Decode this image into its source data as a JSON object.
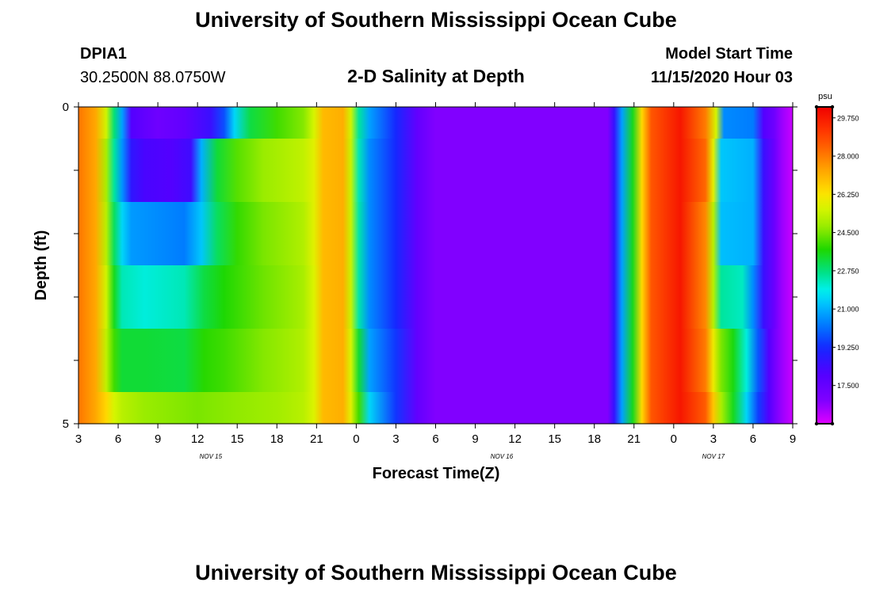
{
  "page": {
    "title_top": "University of Southern Mississippi Ocean Cube",
    "title_bottom": "University of Southern Mississippi Ocean Cube",
    "station_id": "DPIA1",
    "station_coords": "30.2500N 88.0750W",
    "model_start_label": "Model Start Time",
    "model_start_value": "11/15/2020 Hour 03"
  },
  "chart_data": {
    "type": "heatmap",
    "title": "2-D Salinity at Depth",
    "xlabel": "Forecast Time(Z)",
    "ylabel": "Depth (ft)",
    "ylim": [
      0,
      5
    ],
    "x_hours_range": [
      0,
      54
    ],
    "x_tick_labels": [
      "3",
      "6",
      "9",
      "12",
      "15",
      "18",
      "21",
      "0",
      "3",
      "6",
      "9",
      "12",
      "15",
      "18",
      "21",
      "0",
      "3",
      "6",
      "9"
    ],
    "date_labels": [
      {
        "text": "NOV 15",
        "hour": 10
      },
      {
        "text": "NOV 16",
        "hour": 32
      },
      {
        "text": "NOV 17",
        "hour": 48
      }
    ],
    "y_tick_labels": [
      "0",
      "5"
    ],
    "colorbar": {
      "unit": "psu",
      "min": 15.75,
      "max": 30.25,
      "labels": [
        "29.750",
        "28.000",
        "26.250",
        "24.500",
        "22.750",
        "21.000",
        "19.250",
        "17.500"
      ],
      "label_values": [
        29.75,
        28.0,
        26.25,
        24.5,
        22.75,
        21.0,
        19.25,
        17.5
      ]
    },
    "layers": [
      {
        "depth": [
          0.0,
          0.5
        ],
        "points": [
          [
            0,
            28.1
          ],
          [
            1.3,
            27.3
          ],
          [
            2.1,
            25.5
          ],
          [
            2.7,
            22.8
          ],
          [
            3.3,
            20.8
          ],
          [
            4.0,
            18.0
          ],
          [
            5,
            17.6
          ],
          [
            6,
            17.3
          ],
          [
            8,
            17.6
          ],
          [
            10,
            18.5
          ],
          [
            11,
            19.7
          ],
          [
            11.8,
            21.5
          ],
          [
            13,
            23.2
          ],
          [
            15,
            24.0
          ],
          [
            17,
            24.6
          ],
          [
            17.8,
            25.6
          ],
          [
            18.5,
            27.0
          ],
          [
            20,
            27.2
          ],
          [
            20.6,
            25.5
          ],
          [
            21.2,
            22.5
          ],
          [
            22,
            20.8
          ],
          [
            24,
            19.2
          ],
          [
            25.6,
            17.6
          ],
          [
            27,
            16.8
          ],
          [
            40,
            16.8
          ],
          [
            40.5,
            18.6
          ],
          [
            41.1,
            20.8
          ],
          [
            41.9,
            23.5
          ],
          [
            42.6,
            26.5
          ],
          [
            43.3,
            28.6
          ],
          [
            45.5,
            29.8
          ],
          [
            47.4,
            28.0
          ],
          [
            48.2,
            25.6
          ],
          [
            48.8,
            20.5
          ],
          [
            51,
            20.3
          ],
          [
            51.8,
            18.0
          ],
          [
            52.6,
            17.3
          ],
          [
            53.2,
            16.5
          ],
          [
            54,
            16.0
          ]
        ]
      },
      {
        "depth": [
          0.5,
          1.5
        ],
        "points": [
          [
            0,
            28.1
          ],
          [
            1.3,
            27.3
          ],
          [
            2.1,
            25.0
          ],
          [
            2.7,
            22.5
          ],
          [
            3.3,
            20.6
          ],
          [
            4.0,
            18.7
          ],
          [
            5,
            18.2
          ],
          [
            7,
            18.0
          ],
          [
            8.5,
            18.4
          ],
          [
            9.3,
            21.0
          ],
          [
            10.5,
            23.3
          ],
          [
            12,
            24.2
          ],
          [
            14,
            24.8
          ],
          [
            17,
            25.3
          ],
          [
            17.8,
            25.8
          ],
          [
            18.5,
            27.0
          ],
          [
            20,
            27.2
          ],
          [
            20.6,
            25.4
          ],
          [
            21.2,
            22.3
          ],
          [
            22,
            20.5
          ],
          [
            24,
            19.2
          ],
          [
            25.6,
            17.6
          ],
          [
            27,
            16.8
          ],
          [
            40,
            16.8
          ],
          [
            40.5,
            18.6
          ],
          [
            41.1,
            20.8
          ],
          [
            41.9,
            23.5
          ],
          [
            42.6,
            26.5
          ],
          [
            43.3,
            28.6
          ],
          [
            45.5,
            29.8
          ],
          [
            47.4,
            28.3
          ],
          [
            48.0,
            25.8
          ],
          [
            48.6,
            21.3
          ],
          [
            51,
            21.0
          ],
          [
            51.8,
            18.5
          ],
          [
            52.6,
            17.4
          ],
          [
            53.2,
            16.5
          ],
          [
            54,
            16.0
          ]
        ]
      },
      {
        "depth": [
          1.5,
          2.5
        ],
        "points": [
          [
            0,
            28.1
          ],
          [
            1.3,
            27.3
          ],
          [
            2.1,
            25.2
          ],
          [
            2.7,
            23.0
          ],
          [
            3.3,
            21.5
          ],
          [
            4.0,
            20.7
          ],
          [
            5,
            20.6
          ],
          [
            8,
            20.3
          ],
          [
            9.3,
            21.3
          ],
          [
            10.5,
            23.0
          ],
          [
            12,
            23.9
          ],
          [
            14,
            24.5
          ],
          [
            17,
            25.1
          ],
          [
            17.8,
            25.8
          ],
          [
            18.5,
            27.0
          ],
          [
            20,
            27.2
          ],
          [
            20.6,
            25.4
          ],
          [
            21.2,
            22.4
          ],
          [
            22,
            20.5
          ],
          [
            24,
            19.2
          ],
          [
            25.6,
            17.6
          ],
          [
            27,
            16.8
          ],
          [
            40,
            16.8
          ],
          [
            40.5,
            18.6
          ],
          [
            41.1,
            20.8
          ],
          [
            41.9,
            23.5
          ],
          [
            42.6,
            26.5
          ],
          [
            43.3,
            28.6
          ],
          [
            45.5,
            29.8
          ],
          [
            47.4,
            27.8
          ],
          [
            48.0,
            25.2
          ],
          [
            48.6,
            21.2
          ],
          [
            51,
            21.0
          ],
          [
            51.8,
            18.5
          ],
          [
            52.6,
            17.4
          ],
          [
            53.2,
            16.5
          ],
          [
            54,
            16.0
          ]
        ]
      },
      {
        "depth": [
          2.5,
          3.5
        ],
        "points": [
          [
            0,
            28.1
          ],
          [
            1.3,
            27.3
          ],
          [
            2.1,
            25.5
          ],
          [
            2.7,
            23.5
          ],
          [
            3.3,
            22.3
          ],
          [
            5,
            22.0
          ],
          [
            8,
            22.3
          ],
          [
            9.5,
            23.2
          ],
          [
            11,
            23.7
          ],
          [
            14,
            24.4
          ],
          [
            17,
            25.0
          ],
          [
            17.8,
            25.7
          ],
          [
            18.5,
            27.0
          ],
          [
            20,
            27.2
          ],
          [
            20.6,
            25.4
          ],
          [
            21.2,
            22.4
          ],
          [
            22,
            20.5
          ],
          [
            24,
            19.2
          ],
          [
            25.6,
            17.6
          ],
          [
            27,
            16.8
          ],
          [
            40,
            16.8
          ],
          [
            40.5,
            18.6
          ],
          [
            41.1,
            20.8
          ],
          [
            41.9,
            23.5
          ],
          [
            42.6,
            26.5
          ],
          [
            43.3,
            28.6
          ],
          [
            45.5,
            29.8
          ],
          [
            47.4,
            27.8
          ],
          [
            48.0,
            25.2
          ],
          [
            48.6,
            22.5
          ],
          [
            50.2,
            22.2
          ],
          [
            51.0,
            20.5
          ],
          [
            51.8,
            18.5
          ],
          [
            52.6,
            17.4
          ],
          [
            53.2,
            16.5
          ],
          [
            54,
            16.0
          ]
        ]
      },
      {
        "depth": [
          3.5,
          4.5
        ],
        "points": [
          [
            0,
            28.1
          ],
          [
            1.3,
            27.3
          ],
          [
            2.1,
            25.3
          ],
          [
            2.7,
            24.0
          ],
          [
            3.3,
            23.3
          ],
          [
            5,
            23.3
          ],
          [
            8,
            23.2
          ],
          [
            9.5,
            23.8
          ],
          [
            11,
            24.0
          ],
          [
            14,
            24.6
          ],
          [
            17,
            25.1
          ],
          [
            17.8,
            25.7
          ],
          [
            18.5,
            27.0
          ],
          [
            20,
            27.2
          ],
          [
            20.6,
            25.6
          ],
          [
            21.2,
            23.3
          ],
          [
            22,
            20.8
          ],
          [
            24,
            19.4
          ],
          [
            25.6,
            17.6
          ],
          [
            27,
            16.8
          ],
          [
            40,
            16.8
          ],
          [
            40.5,
            18.6
          ],
          [
            41.1,
            20.8
          ],
          [
            41.9,
            23.5
          ],
          [
            42.6,
            26.5
          ],
          [
            43.3,
            28.6
          ],
          [
            45.5,
            29.8
          ],
          [
            47.4,
            28.0
          ],
          [
            48.0,
            26.0
          ],
          [
            48.6,
            24.5
          ],
          [
            49.5,
            23.6
          ],
          [
            50.5,
            22.0
          ],
          [
            51.4,
            19.8
          ],
          [
            52.2,
            18.0
          ],
          [
            53.2,
            16.5
          ],
          [
            54,
            16.0
          ]
        ]
      },
      {
        "depth": [
          4.5,
          5.0
        ],
        "points": [
          [
            0,
            28.1
          ],
          [
            1.3,
            27.3
          ],
          [
            2.1,
            26.5
          ],
          [
            2.7,
            25.6
          ],
          [
            3.3,
            25.2
          ],
          [
            5,
            24.8
          ],
          [
            9,
            24.5
          ],
          [
            12,
            24.7
          ],
          [
            15,
            24.9
          ],
          [
            17,
            25.2
          ],
          [
            17.8,
            25.7
          ],
          [
            18.5,
            27.0
          ],
          [
            20,
            27.2
          ],
          [
            20.6,
            25.8
          ],
          [
            21.2,
            24.0
          ],
          [
            22,
            21.5
          ],
          [
            24,
            19.4
          ],
          [
            25.6,
            17.6
          ],
          [
            27,
            16.8
          ],
          [
            40,
            16.8
          ],
          [
            40.5,
            18.6
          ],
          [
            41.1,
            20.8
          ],
          [
            41.9,
            23.5
          ],
          [
            42.6,
            26.5
          ],
          [
            43.3,
            28.6
          ],
          [
            45.5,
            29.8
          ],
          [
            47.4,
            28.5
          ],
          [
            48.0,
            26.8
          ],
          [
            48.6,
            25.0
          ],
          [
            49.5,
            23.5
          ],
          [
            50.5,
            21.5
          ],
          [
            51.4,
            19.5
          ],
          [
            52.2,
            18.0
          ],
          [
            53.2,
            16.5
          ],
          [
            54,
            16.0
          ]
        ]
      }
    ]
  }
}
